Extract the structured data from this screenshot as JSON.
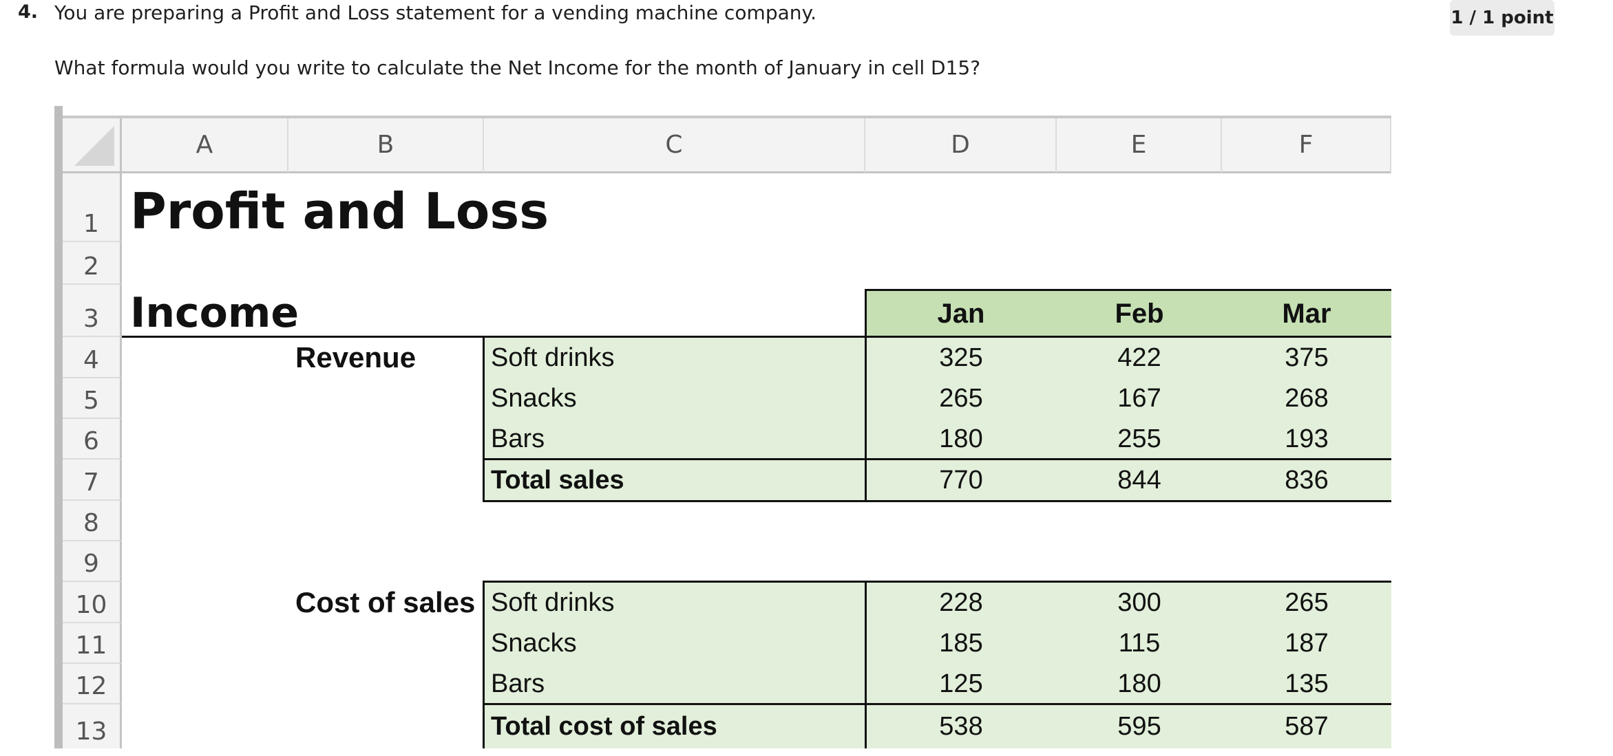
{
  "question": {
    "number": "4.",
    "text": "You are preparing a Profit and Loss statement for a vending machine company.",
    "subtext": "What formula would you write to calculate the Net Income for the month of January in cell D15?",
    "score": "1 / 1 point"
  },
  "spreadsheet": {
    "columns": [
      "A",
      "B",
      "C",
      "D",
      "E",
      "F"
    ],
    "rows": [
      "1",
      "2",
      "3",
      "4",
      "5",
      "6",
      "7",
      "8",
      "9",
      "10",
      "11",
      "12",
      "13"
    ],
    "title": "Profit and Loss",
    "section_income": "Income",
    "months": [
      "Jan",
      "Feb",
      "Mar"
    ],
    "revenue_label": "Revenue",
    "revenue_items": [
      {
        "name": "Soft drinks",
        "values": [
          "325",
          "422",
          "375"
        ]
      },
      {
        "name": "Snacks",
        "values": [
          "265",
          "167",
          "268"
        ]
      },
      {
        "name": "Bars",
        "values": [
          "180",
          "255",
          "193"
        ]
      }
    ],
    "total_sales": {
      "name": "Total sales",
      "values": [
        "770",
        "844",
        "836"
      ]
    },
    "cost_label": "Cost of sales",
    "cost_items": [
      {
        "name": "Soft drinks",
        "values": [
          "228",
          "300",
          "265"
        ]
      },
      {
        "name": "Snacks",
        "values": [
          "185",
          "115",
          "187"
        ]
      },
      {
        "name": "Bars",
        "values": [
          "125",
          "180",
          "135"
        ]
      }
    ],
    "total_cost": {
      "name": "Total cost of sales",
      "values": [
        "538",
        "595",
        "587"
      ]
    },
    "colors": {
      "green_fill": "#e2efda",
      "green_header": "#c6e0b4"
    }
  }
}
